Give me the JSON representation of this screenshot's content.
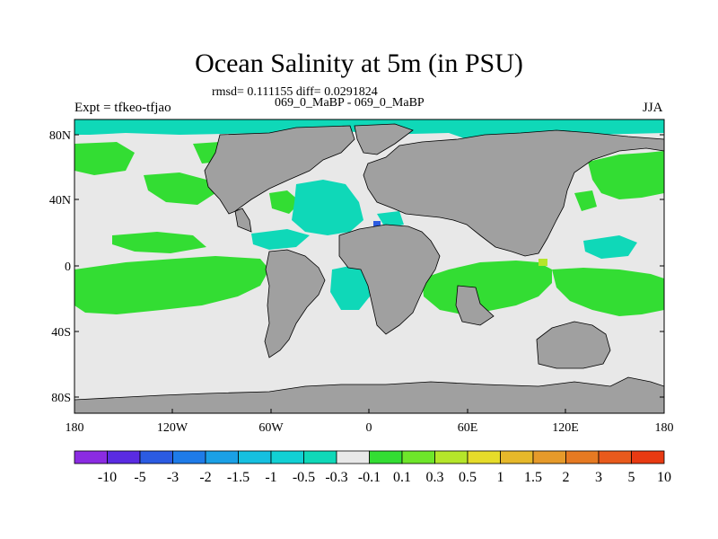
{
  "title": "Ocean Salinity at 5m (in PSU)",
  "stats_line": "rmsd= 0.111155 diff= 0.0291824",
  "case_line": "069_0_MaBP - 069_0_MaBP",
  "left_label": "Expt = tfkeo-tfjao",
  "right_label": "JJA",
  "map": {
    "lat_ticks": [
      "80N",
      "40N",
      "0",
      "40S",
      "80S"
    ],
    "lon_ticks": [
      "180",
      "120W",
      "60W",
      "0",
      "60E",
      "120E",
      "180"
    ],
    "land_color": "#a0a0a0",
    "ocean_neutral_color": "#e8e8e8"
  },
  "colorbar": {
    "labels": [
      "-10",
      "-5",
      "-3",
      "-2",
      "-1.5",
      "-1",
      "-0.5",
      "-0.3",
      "-0.1",
      "0.1",
      "0.3",
      "0.5",
      "1",
      "1.5",
      "2",
      "3",
      "5",
      "10"
    ],
    "colors": [
      "#8b2be2",
      "#5a2be2",
      "#2b5be2",
      "#1e7be8",
      "#1aa0e6",
      "#16c0e0",
      "#12d0d4",
      "#0fd8b8",
      "#e8e8e8",
      "#33dd33",
      "#6ee62a",
      "#b5e62a",
      "#e6dc2a",
      "#e6b82a",
      "#e69a2a",
      "#e67a22",
      "#e85a1c",
      "#e83a12"
    ]
  }
}
